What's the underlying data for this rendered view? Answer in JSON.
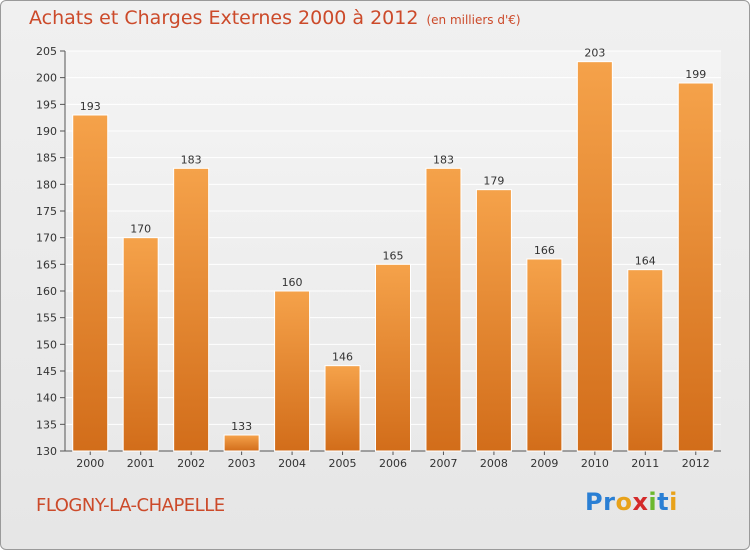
{
  "header": {
    "title": "Achats et Charges Externes 2000 à 2012",
    "subtitle": "(en milliers d'€)"
  },
  "footer": {
    "town": "FLOGNY-LA-CHAPELLE",
    "logo_letters": [
      "P",
      "r",
      "o",
      "x",
      "i",
      "t",
      "i"
    ],
    "logo_colors": [
      "#2a7fd4",
      "#2a7fd4",
      "#e8a21a",
      "#d42a2a",
      "#6cb82e",
      "#2a7fd4",
      "#e8a21a"
    ]
  },
  "colors": {
    "bar_top": "#f5a24a",
    "bar_bottom": "#d26d1a",
    "title": "#cc4a2a"
  },
  "chart_data": {
    "type": "bar",
    "title": "Achats et Charges Externes 2000 à 2012",
    "subtitle": "(en milliers d'€)",
    "xlabel": "",
    "ylabel": "",
    "categories": [
      "2000",
      "2001",
      "2002",
      "2003",
      "2004",
      "2005",
      "2006",
      "2007",
      "2008",
      "2009",
      "2010",
      "2011",
      "2012"
    ],
    "values": [
      193,
      170,
      183,
      133,
      160,
      146,
      165,
      183,
      179,
      166,
      203,
      164,
      199
    ],
    "ylim": [
      130,
      205
    ],
    "yticks": [
      130,
      135,
      140,
      145,
      150,
      155,
      160,
      165,
      170,
      175,
      180,
      185,
      190,
      195,
      200,
      205
    ],
    "grid": true,
    "data_labels": true
  }
}
